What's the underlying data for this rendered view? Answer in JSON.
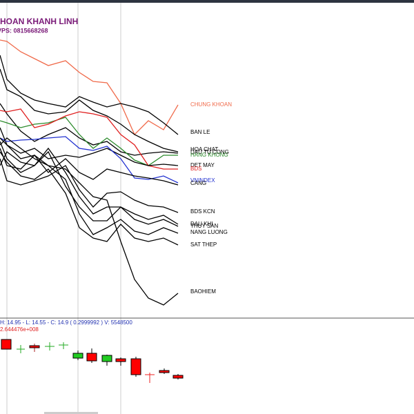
{
  "header": {
    "title": "HOAN KHANH LINH",
    "phone": "VPS: 0815668268"
  },
  "labels": [
    "CHUNG KHOAN",
    "BAN LE",
    "HOA CHAT",
    "DAU TU CONG",
    "HANG KHONG",
    "DET MAY",
    "BDS",
    "VNINDEX",
    "CANG",
    "BDS KCN",
    "DAU KHI",
    "THUY SAN",
    "NANG LUONG",
    "SAT THEP",
    "BAOHIEM"
  ],
  "quote": {
    "ohlc": "H: 14.95 - L: 14.55 - C: 14.9 ( 0.2999992 ) V: 5548500",
    "volume": "2.644476e+008"
  }
}
